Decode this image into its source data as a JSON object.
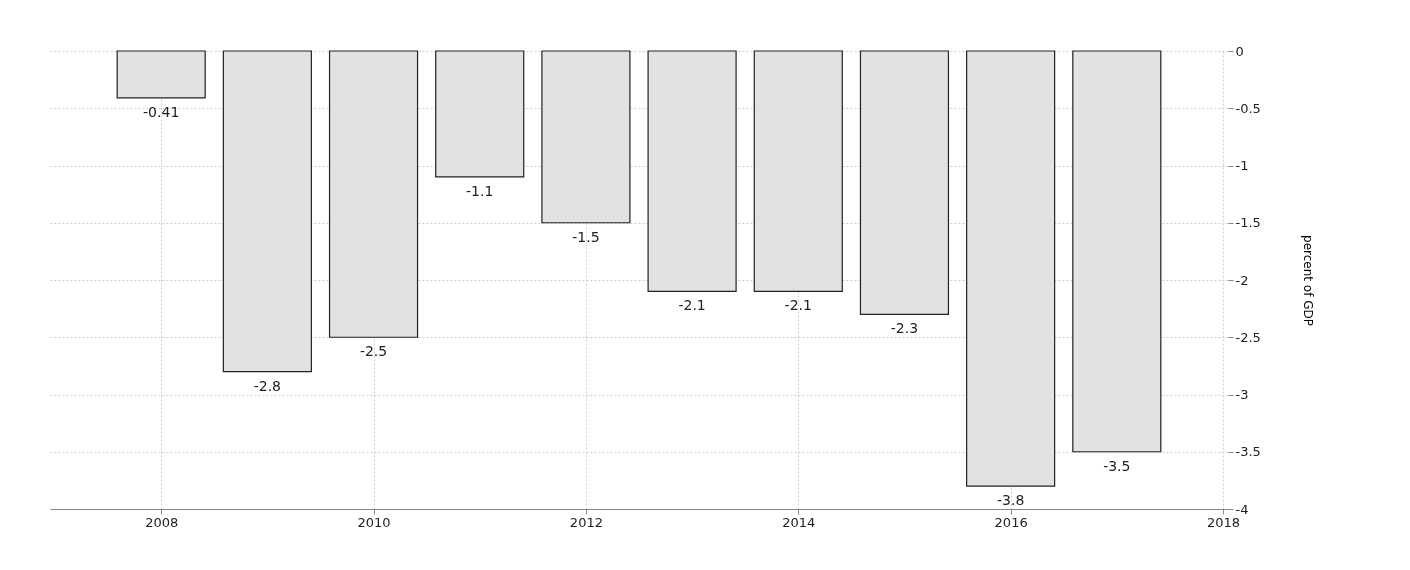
{
  "chart_data": {
    "type": "bar",
    "ylabel": "percent of GDP",
    "x": [
      2008,
      2009,
      2010,
      2011,
      2012,
      2013,
      2014,
      2015,
      2016,
      2017
    ],
    "values": [
      -0.41,
      -2.8,
      -2.5,
      -1.1,
      -1.5,
      -2.1,
      -2.1,
      -2.3,
      -3.8,
      -3.5
    ],
    "color": "#e2e2e2",
    "xlim": [
      2007,
      2018
    ],
    "xticks": [
      2008,
      2010,
      2012,
      2014,
      2016,
      2018
    ],
    "ylim": [
      -4,
      0
    ],
    "yticks": [
      0,
      -0.5,
      -1,
      -1.5,
      -2,
      -2.5,
      -3,
      -3.5,
      -4
    ],
    "grid": true,
    "data_labels": true
  }
}
